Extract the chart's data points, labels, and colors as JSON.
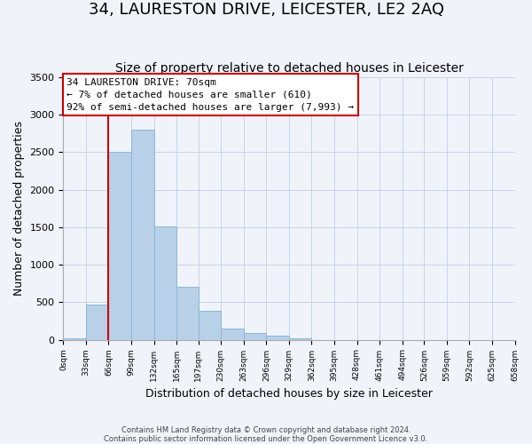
{
  "title": "34, LAURESTON DRIVE, LEICESTER, LE2 2AQ",
  "subtitle": "Size of property relative to detached houses in Leicester",
  "xlabel": "Distribution of detached houses by size in Leicester",
  "ylabel": "Number of detached properties",
  "footer_line1": "Contains HM Land Registry data © Crown copyright and database right 2024.",
  "footer_line2": "Contains public sector information licensed under the Open Government Licence v3.0.",
  "bar_edges": [
    0,
    33,
    66,
    99,
    132,
    165,
    197,
    230,
    263,
    296,
    329,
    362,
    395,
    428,
    461,
    494,
    526,
    559,
    592,
    625,
    658
  ],
  "bar_heights": [
    20,
    470,
    2500,
    2800,
    1510,
    700,
    390,
    150,
    90,
    55,
    20,
    0,
    0,
    0,
    0,
    0,
    0,
    0,
    0,
    0
  ],
  "bar_color": "#b8d0e8",
  "bar_edge_color": "#88b8d8",
  "annotation_line1": "34 LAURESTON DRIVE: 70sqm",
  "annotation_line2": "← 7% of detached houses are smaller (610)",
  "annotation_line3": "92% of semi-detached houses are larger (7,993) →",
  "vline_x": 66,
  "vline_color": "#cc0000",
  "ylim": [
    0,
    3500
  ],
  "xlim": [
    0,
    658
  ],
  "tick_labels": [
    "0sqm",
    "33sqm",
    "66sqm",
    "99sqm",
    "132sqm",
    "165sqm",
    "197sqm",
    "230sqm",
    "263sqm",
    "296sqm",
    "329sqm",
    "362sqm",
    "395sqm",
    "428sqm",
    "461sqm",
    "494sqm",
    "526sqm",
    "559sqm",
    "592sqm",
    "625sqm",
    "658sqm"
  ],
  "tick_positions": [
    0,
    33,
    66,
    99,
    132,
    165,
    197,
    230,
    263,
    296,
    329,
    362,
    395,
    428,
    461,
    494,
    526,
    559,
    592,
    625,
    658
  ],
  "yticks": [
    0,
    500,
    1000,
    1500,
    2000,
    2500,
    3000,
    3500
  ],
  "bg_color": "#f0f4fa",
  "grid_color": "#c8d4e8",
  "title_fontsize": 13,
  "subtitle_fontsize": 10
}
